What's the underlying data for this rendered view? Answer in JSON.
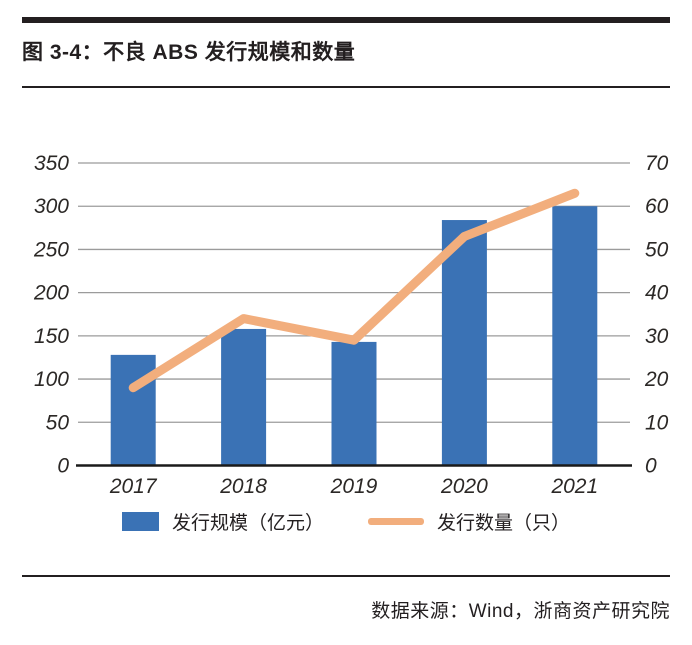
{
  "title": "图 3-4：不良 ABS 发行规模和数量",
  "source": "数据来源：Wind，浙商资产研究院",
  "colors": {
    "bar": "#3a72b5",
    "line": "#f2ae7d",
    "grid": "#9b9b9b",
    "axis": "#1a1a1a",
    "text": "#2b2826"
  },
  "chart_data": {
    "type": "bar+line combo",
    "title": "不良 ABS 发行规模和数量",
    "categories": [
      "2017",
      "2018",
      "2019",
      "2020",
      "2021"
    ],
    "series": [
      {
        "name": "发行规模（亿元）",
        "type": "bar",
        "axis": "left",
        "values": [
          128,
          158,
          143,
          284,
          300
        ]
      },
      {
        "name": "发行数量（只）",
        "type": "line",
        "axis": "right",
        "values": [
          18,
          34,
          29,
          53,
          63
        ]
      }
    ],
    "left_axis": {
      "min": 0,
      "max": 350,
      "step": 50,
      "ticks": [
        "0",
        "50",
        "100",
        "150",
        "200",
        "250",
        "300",
        "350"
      ]
    },
    "right_axis": {
      "min": 0,
      "max": 70,
      "step": 10,
      "ticks": [
        "0",
        "10",
        "20",
        "30",
        "40",
        "50",
        "60",
        "70"
      ]
    },
    "grid": true,
    "legend_position": "bottom",
    "xlabel": "",
    "ylabel_left": "",
    "ylabel_right": ""
  }
}
